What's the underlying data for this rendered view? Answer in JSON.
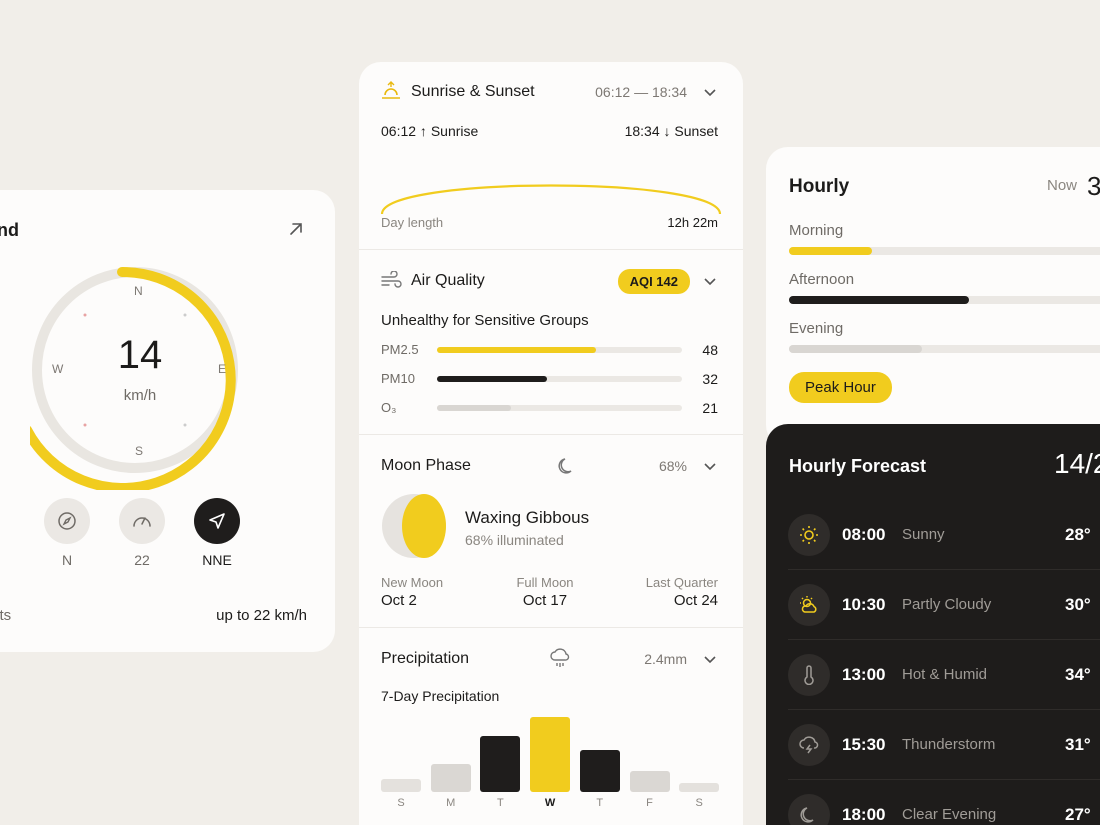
{
  "wind": {
    "title": "ind",
    "speed": "14",
    "unit": "km/h",
    "dirs": {
      "n": "N",
      "e": "E",
      "s": "S",
      "w": "W"
    },
    "buttons": [
      {
        "label": "N"
      },
      {
        "label": "22"
      },
      {
        "label": "NNE"
      }
    ],
    "gusts_label": "sts",
    "gusts_value": "up to 22 km/h"
  },
  "sun": {
    "title": "Sunrise & Sunset",
    "range": "06:12 — 18:34",
    "sunrise": "06:12 ↑ Sunrise",
    "sunset": "18:34 ↓ Sunset",
    "daylen_label": "Day length",
    "daylen_value": "12h 22m"
  },
  "air": {
    "title": "Air Quality",
    "badge": "AQI 142",
    "status": "Unhealthy for Sensitive Groups",
    "rows": [
      {
        "label": "PM2.5",
        "value": "48",
        "fill": 0.65,
        "color": "#f1cc1e"
      },
      {
        "label": "PM10",
        "value": "32",
        "fill": 0.45,
        "color": "#1f1d1c"
      },
      {
        "label": "O₃",
        "value": "21",
        "fill": 0.3,
        "color": "#d9d6d2"
      }
    ]
  },
  "moon": {
    "title": "Moon Phase",
    "percent": "68%",
    "phase": "Waxing Gibbous",
    "illum": "68% illuminated",
    "dates": [
      {
        "label": "New Moon",
        "date": "Oct 2"
      },
      {
        "label": "Full Moon",
        "date": "Oct 17"
      },
      {
        "label": "Last Quarter",
        "date": "Oct 24"
      }
    ]
  },
  "precip": {
    "title": "Precipitation",
    "amount": "2.4mm",
    "subtitle": "7-Day Precipitation",
    "days": [
      {
        "d": "S",
        "v": 0.18,
        "c": "#e4e1dd"
      },
      {
        "d": "M",
        "v": 0.38,
        "c": "#dad7d3"
      },
      {
        "d": "T",
        "v": 0.75,
        "c": "#1f1d1c"
      },
      {
        "d": "W",
        "v": 1.0,
        "c": "#f1cc1e"
      },
      {
        "d": "T",
        "v": 0.56,
        "c": "#1f1d1c"
      },
      {
        "d": "F",
        "v": 0.28,
        "c": "#dad7d3"
      },
      {
        "d": "S",
        "v": 0.12,
        "c": "#e4e1dd"
      }
    ]
  },
  "hourly": {
    "title": "Hourly",
    "now_label": "Now",
    "now_value": "3",
    "rows": [
      {
        "label": "Morning",
        "fill": 0.23,
        "color": "#f1cc1e"
      },
      {
        "label": "Afternoon",
        "fill": 0.5,
        "color": "#1f1d1c"
      },
      {
        "label": "Evening",
        "fill": 0.37,
        "color": "#d9d6d2"
      }
    ],
    "peak": "Peak Hour"
  },
  "forecast": {
    "title": "Hourly Forecast",
    "date": "14/2",
    "rows": [
      {
        "time": "08:00",
        "desc": "Sunny",
        "temp": "28°",
        "icon": "sun-icon"
      },
      {
        "time": "10:30",
        "desc": "Partly Cloudy",
        "temp": "30°",
        "icon": "partly-cloudy-icon"
      },
      {
        "time": "13:00",
        "desc": "Hot & Humid",
        "temp": "34°",
        "icon": "thermometer-icon"
      },
      {
        "time": "15:30",
        "desc": "Thunderstorm",
        "temp": "31°",
        "icon": "thunderstorm-icon"
      },
      {
        "time": "18:00",
        "desc": "Clear Evening",
        "temp": "27°",
        "icon": "moon-icon"
      }
    ]
  },
  "colors": {
    "accent": "#f1cc1e",
    "dark": "#1f1d1c",
    "bg": "#f1eee9"
  }
}
